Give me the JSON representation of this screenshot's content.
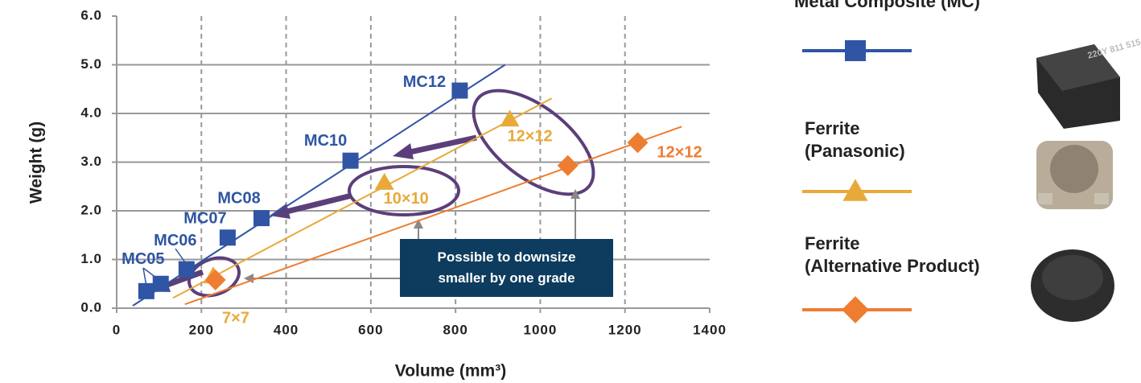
{
  "chart_data": {
    "type": "scatter",
    "x_label": "Volume (mm³)",
    "y_label": "Weight (g)",
    "xlim": [
      0,
      1400
    ],
    "xticks": [
      0,
      200,
      400,
      600,
      800,
      1000,
      1200,
      1400
    ],
    "ylim": [
      0,
      6
    ],
    "yticks": [
      {
        "value": 0,
        "label": "0.0"
      },
      {
        "value": 1,
        "label": "1.0"
      },
      {
        "value": 2,
        "label": "2.0"
      },
      {
        "value": 3,
        "label": "3.0"
      },
      {
        "value": 4,
        "label": "4.0"
      },
      {
        "value": 5,
        "label": "5.0"
      },
      {
        "value": 6,
        "label": "6.0"
      }
    ],
    "grid": true,
    "legend": "right",
    "series": [
      {
        "name": "Metal Composite (MC)",
        "color": "#2f55a4",
        "marker": "square",
        "x": [
          70,
          104,
          165,
          262,
          342,
          552,
          810
        ],
        "values": [
          0.35,
          0.5,
          0.8,
          1.45,
          1.85,
          3.03,
          4.47
        ],
        "point_labels": [
          "MC05",
          null,
          "MC06",
          "MC07",
          "MC08",
          "MC10",
          "MC12"
        ],
        "trend": {
          "x": [
            38,
            917
          ],
          "values": [
            0.05,
            5.0
          ]
        }
      },
      {
        "name": "Ferrite\n(Panasonic)",
        "color": "#e8a93a",
        "marker": "triangle",
        "x": [
          228,
          632,
          928
        ],
        "values": [
          0.66,
          2.58,
          3.88
        ],
        "point_labels": [
          "7×7",
          "10×10",
          "12×12"
        ],
        "trend": {
          "x": [
            133,
            1027
          ],
          "values": [
            0.21,
            4.31
          ]
        }
      },
      {
        "name": "Ferrite\n(Alternative Product)",
        "color": "#ee7d31",
        "marker": "diamond",
        "x": [
          233,
          1065,
          1230
        ],
        "values": [
          0.58,
          2.93,
          3.4
        ],
        "point_labels": [
          null,
          null,
          "12×12"
        ],
        "trend": {
          "x": [
            161,
            1334
          ],
          "values": [
            0.08,
            3.73
          ]
        }
      }
    ],
    "annotation": "Possible to downsize smaller by one grade"
  }
}
